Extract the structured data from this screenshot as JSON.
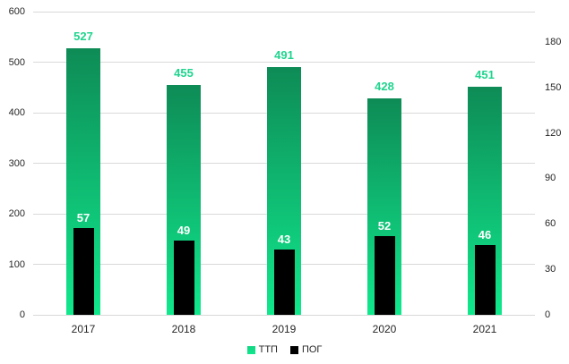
{
  "chart_data": {
    "type": "bar",
    "title": "",
    "categories": [
      "2017",
      "2018",
      "2019",
      "2020",
      "2021"
    ],
    "series": [
      {
        "name": "ТТП",
        "axis": "left",
        "values": [
          527,
          455,
          491,
          428,
          451
        ],
        "bar_color_top": "#0E8B56",
        "bar_color_bottom": "#10E88C",
        "legend_color": "#12D584",
        "label_color": "#1FD48E"
      },
      {
        "name": "ПОГ",
        "axis": "right",
        "values": [
          57,
          49,
          43,
          52,
          46
        ],
        "bar_color": "#000000",
        "legend_color": "#000000",
        "label_color": "#FFFFFF"
      }
    ],
    "left_axis": {
      "min": 0,
      "max": 600,
      "step": 100,
      "tick_labels": [
        "0",
        "100",
        "200",
        "300",
        "400",
        "500",
        "600"
      ]
    },
    "right_axis": {
      "min": 0,
      "max": 200,
      "step": 30,
      "tick_labels": [
        "0",
        "30",
        "60",
        "90",
        "120",
        "150",
        "180"
      ]
    },
    "grid": true,
    "legend_position": "bottom",
    "colors": {
      "background": "#FFFFFF",
      "gridline": "#D9D9D9",
      "tick_text": "#262626"
    }
  }
}
